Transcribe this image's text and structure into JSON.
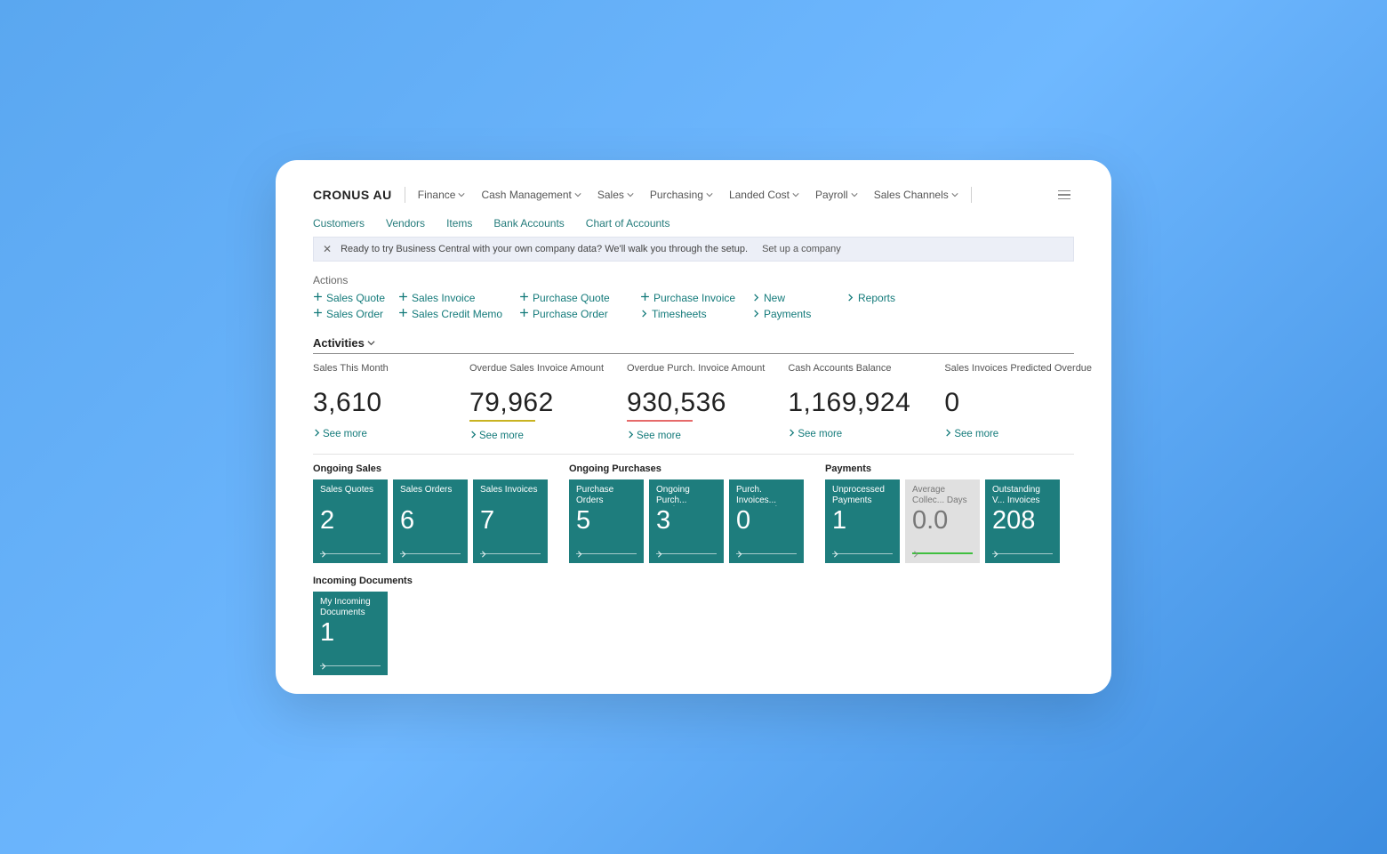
{
  "colors": {
    "teal": "#1e7d7d",
    "link": "#137a7a",
    "gray": "#e0e0e0",
    "yellow": "#c9b321",
    "red": "#e66a6a"
  },
  "company": "CRONUS AU",
  "topMenu": [
    "Finance",
    "Cash Management",
    "Sales",
    "Purchasing",
    "Landed Cost",
    "Payroll",
    "Sales Channels"
  ],
  "subLinks": [
    "Customers",
    "Vendors",
    "Items",
    "Bank Accounts",
    "Chart of Accounts"
  ],
  "banner": {
    "text": "Ready to try Business Central with your own company data? We'll walk you through the setup.",
    "action": "Set up a company"
  },
  "actionsLabel": "Actions",
  "actions": [
    {
      "icon": "plus",
      "label": "Sales Quote"
    },
    {
      "icon": "plus",
      "label": "Sales Invoice"
    },
    {
      "icon": "plus",
      "label": "Purchase Quote"
    },
    {
      "icon": "plus",
      "label": "Purchase Invoice"
    },
    {
      "icon": "chevron",
      "label": "New"
    },
    {
      "icon": "chevron",
      "label": "Reports"
    },
    {
      "icon": "plus",
      "label": "Sales Order"
    },
    {
      "icon": "plus",
      "label": "Sales Credit Memo"
    },
    {
      "icon": "plus",
      "label": "Purchase Order"
    },
    {
      "icon": "chevron",
      "label": "Timesheets"
    },
    {
      "icon": "chevron",
      "label": "Payments"
    },
    {
      "icon": "",
      "label": ""
    }
  ],
  "activitiesHeader": "Activities",
  "kpis": [
    {
      "label": "Sales This Month",
      "value": "3,610",
      "underline": null,
      "seeMore": "See more"
    },
    {
      "label": "Overdue Sales Invoice Amount",
      "value": "79,962",
      "underline": "#c9b321",
      "seeMore": "See more"
    },
    {
      "label": "Overdue Purch. Invoice Amount",
      "value": "930,536",
      "underline": "#e66a6a",
      "seeMore": "See more"
    },
    {
      "label": "Cash Accounts Balance",
      "value": "1,169,924",
      "underline": null,
      "seeMore": "See more"
    },
    {
      "label": "Sales Invoices Predicted Overdue",
      "value": "0",
      "underline": null,
      "seeMore": "See more"
    }
  ],
  "tileGroups": [
    {
      "title": "Ongoing Sales",
      "tiles": [
        {
          "title": "Sales Quotes",
          "value": "2",
          "variant": "teal"
        },
        {
          "title": "Sales Orders",
          "value": "6",
          "variant": "teal"
        },
        {
          "title": "Sales Invoices",
          "value": "7",
          "variant": "teal"
        }
      ]
    },
    {
      "title": "Ongoing Purchases",
      "tiles": [
        {
          "title": "Purchase Orders",
          "value": "5",
          "variant": "teal"
        },
        {
          "title": "Ongoing Purch... Invoices",
          "value": "3",
          "variant": "teal"
        },
        {
          "title": "Purch. Invoices... Next Week",
          "value": "0",
          "variant": "teal"
        }
      ]
    },
    {
      "title": "Payments",
      "tiles": [
        {
          "title": "Unprocessed Payments",
          "value": "1",
          "variant": "teal"
        },
        {
          "title": "Average Collec... Days",
          "value": "0.0",
          "variant": "gray"
        },
        {
          "title": "Outstanding V... Invoices",
          "value": "208",
          "variant": "teal"
        }
      ]
    }
  ],
  "incoming": {
    "title": "Incoming Documents",
    "tiles": [
      {
        "title": "My Incoming Documents",
        "value": "1",
        "variant": "teal"
      }
    ]
  }
}
